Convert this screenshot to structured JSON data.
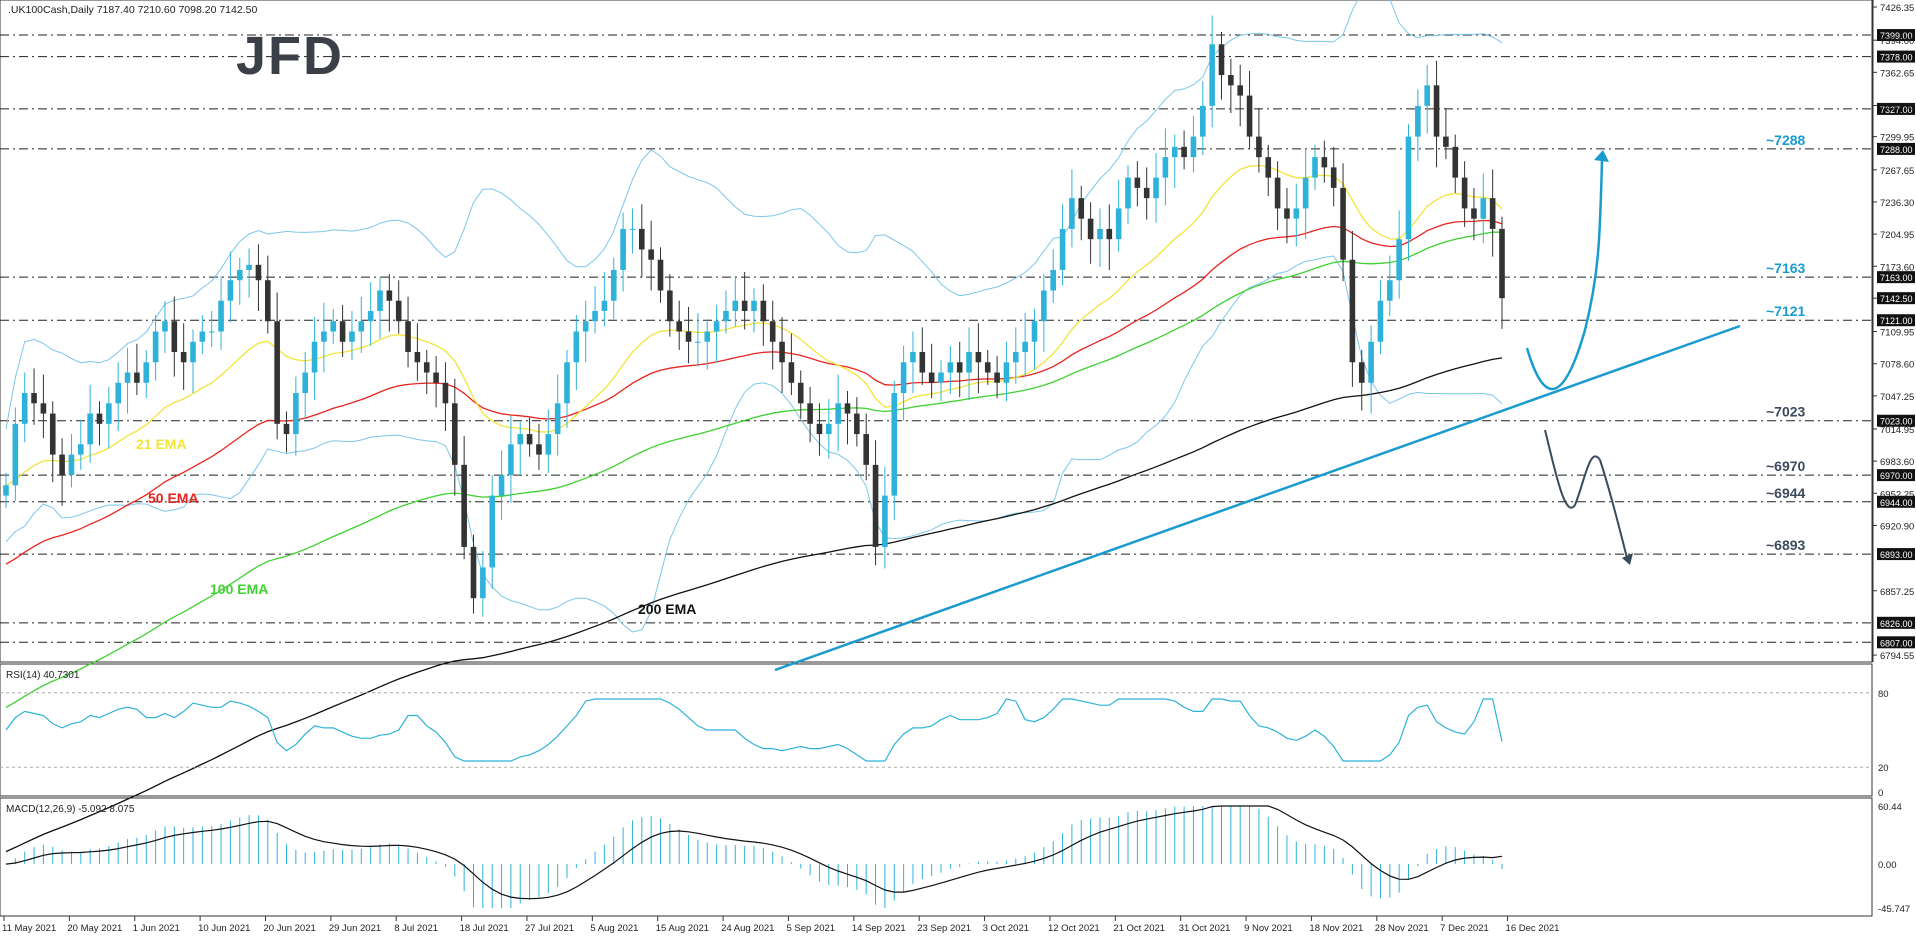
{
  "header": {
    "symbol_line": ".UK100Cash,Daily  7187.40 7210.60 7098.20 7142.50",
    "logo": "JFD"
  },
  "colors": {
    "ema21": "#f2e43a",
    "ema50": "#e8241e",
    "ema100": "#3ed12f",
    "ema200": "#111111",
    "bollinger": "#7cc7ea",
    "trendline": "#1a9bd0",
    "arrow_up": "#1a9bd0",
    "arrow_down": "#3b4a5c",
    "bull_candle": "#2fb2d9",
    "bear_candle": "#333333",
    "level_label": "#1a9bd0",
    "level_label_dark": "#3b4a5c"
  },
  "chart_data": [
    {
      "type": "candlestick",
      "title": ".UK100Cash,Daily",
      "ylim": [
        6780,
        7426.35
      ],
      "price_axis_ticks": [
        "7426.35",
        "7394.00",
        "7362.65",
        "7330.30",
        "7299.95",
        "7267.65",
        "7236.30",
        "7204.95",
        "7173.60",
        "7142.50",
        "7109.95",
        "7078.60",
        "7047.25",
        "7014.95",
        "6983.60",
        "6952.25",
        "6920.90",
        "6857.25",
        "6794.55"
      ],
      "key_levels": [
        {
          "value": 7399,
          "label": "7399.00"
        },
        {
          "value": 7378,
          "label": "7378.00"
        },
        {
          "value": 7327,
          "label": "7327.00"
        },
        {
          "value": 7288,
          "label": "7288.00",
          "note": "~7288"
        },
        {
          "value": 7163,
          "label": "7163.00",
          "note": "~7163"
        },
        {
          "value": 7121,
          "label": "7121.00",
          "note": "~7121"
        },
        {
          "value": 7023,
          "label": "7023.00",
          "note": "~7023"
        },
        {
          "value": 6970,
          "label": "6970.00",
          "note": "~6970"
        },
        {
          "value": 6944,
          "label": "6944.00",
          "note": "~6944"
        },
        {
          "value": 6893,
          "label": "6893.00",
          "note": "~6893"
        },
        {
          "value": 6826,
          "label": "6826.00"
        },
        {
          "value": 6807,
          "label": "6807.00"
        }
      ],
      "current_price_label": "7142.50",
      "date_labels": [
        "11 May 2021",
        "20 May 2021",
        "1 Jun 2021",
        "10 Jun 2021",
        "20 Jun 2021",
        "29 Jun 2021",
        "8 Jul 2021",
        "18 Jul 2021",
        "27 Jul 2021",
        "5 Aug 2021",
        "15 Aug 2021",
        "24 Aug 2021",
        "5 Sep 2021",
        "14 Sep 2021",
        "23 Sep 2021",
        "3 Oct 2021",
        "12 Oct 2021",
        "21 Oct 2021",
        "31 Oct 2021",
        "9 Nov 2021",
        "18 Nov 2021",
        "28 Nov 2021",
        "7 Dec 2021",
        "16 Dec 2021"
      ],
      "ema_labels": {
        "ema21": "21 EMA",
        "ema50": "50 EMA",
        "ema100": "100 EMA",
        "ema200": "200 EMA"
      },
      "scenario_notes": [
        "~7288",
        "~7163",
        "~7121",
        "~7023",
        "~6970",
        "~6944",
        "~6893"
      ],
      "closes": [
        6960,
        7020,
        7050,
        7040,
        7030,
        6990,
        6970,
        6990,
        7000,
        7030,
        7020,
        7040,
        7060,
        7070,
        7060,
        7080,
        7110,
        7120,
        7090,
        7080,
        7100,
        7110,
        7110,
        7140,
        7160,
        7170,
        7175,
        7160,
        7120,
        7020,
        7010,
        7050,
        7070,
        7100,
        7110,
        7120,
        7100,
        7110,
        7120,
        7130,
        7150,
        7140,
        7120,
        7090,
        7080,
        7070,
        7060,
        7040,
        6980,
        6900,
        6850,
        6880,
        6950,
        6970,
        7000,
        7010,
        7000,
        6990,
        7010,
        7040,
        7080,
        7110,
        7120,
        7130,
        7140,
        7170,
        7210,
        7210,
        7190,
        7180,
        7150,
        7120,
        7110,
        7100,
        7100,
        7110,
        7120,
        7130,
        7140,
        7130,
        7140,
        7120,
        7100,
        7080,
        7060,
        7040,
        7020,
        7010,
        7020,
        7040,
        7030,
        7010,
        6980,
        6900,
        6950,
        7050,
        7080,
        7090,
        7070,
        7060,
        7070,
        7080,
        7070,
        7090,
        7080,
        7070,
        7060,
        7080,
        7090,
        7100,
        7120,
        7150,
        7170,
        7210,
        7240,
        7220,
        7200,
        7210,
        7200,
        7230,
        7260,
        7250,
        7240,
        7260,
        7280,
        7290,
        7280,
        7300,
        7330,
        7390,
        7360,
        7350,
        7340,
        7300,
        7280,
        7260,
        7230,
        7220,
        7230,
        7260,
        7280,
        7270,
        7250,
        7180,
        7080,
        7060,
        7100,
        7140,
        7160,
        7200,
        7300,
        7330,
        7350,
        7300,
        7290,
        7260,
        7230,
        7220,
        7240,
        7210,
        7142.5
      ],
      "rsi": {
        "label": "RSI(14) 40.7301",
        "levels": [
          80,
          20
        ],
        "axis": [
          "80",
          "20",
          "0"
        ],
        "last": 40.7301
      },
      "macd": {
        "label": "MACD(12,26,9) -5.092 8.075",
        "axis": [
          "60.44",
          "0.00",
          "-45.747"
        ],
        "main": -5.092,
        "signal": 8.075
      }
    }
  ]
}
